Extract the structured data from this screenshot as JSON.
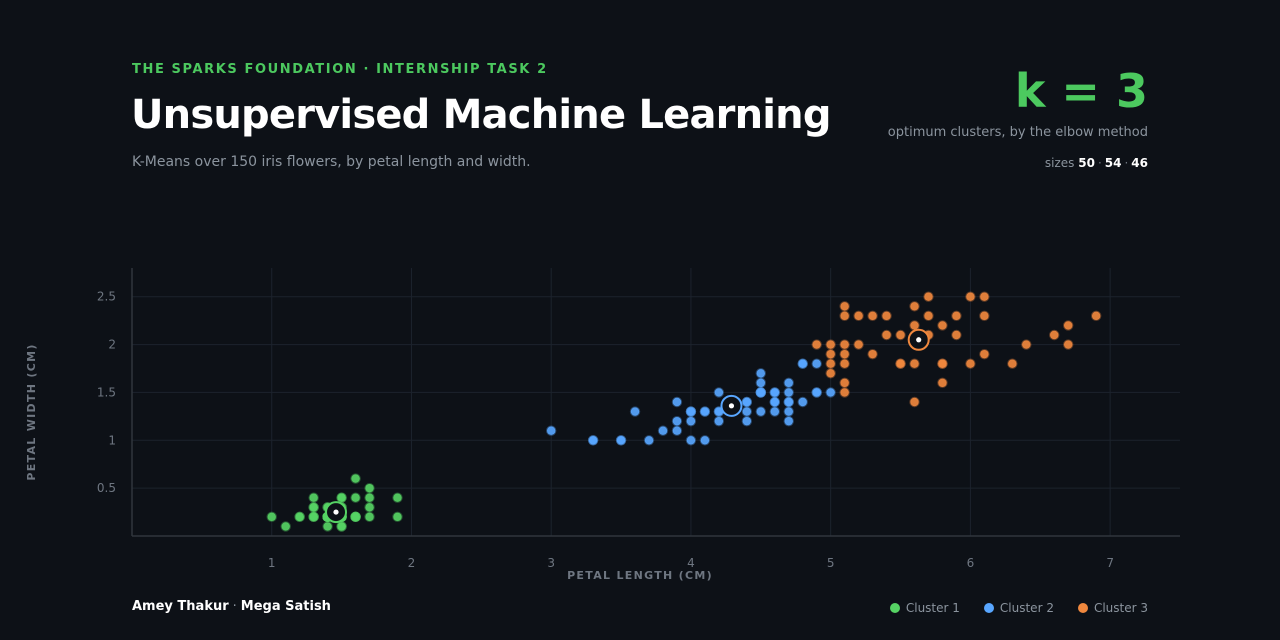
{
  "header": {
    "eyebrow": "THE SPARKS FOUNDATION · INTERNSHIP TASK 2",
    "title": "Unsupervised Machine Learning",
    "subtitle": "K-Means over 150 iris flowers, by petal length and width."
  },
  "summary": {
    "k_label": "k = 3",
    "k_note": "optimum clusters, by the elbow method",
    "sizes_label": "sizes",
    "sizes": [
      "50",
      "54",
      "46"
    ]
  },
  "footer": {
    "author_1": "Amey Thakur",
    "author_sep": "·",
    "author_2": "Mega Satish"
  },
  "chart_data": {
    "type": "scatter",
    "title": "",
    "xlabel": "PETAL LENGTH (CM)",
    "ylabel": "PETAL WIDTH (CM)",
    "xlim": [
      0,
      7.5
    ],
    "ylim": [
      0,
      2.8
    ],
    "xticks": [
      "1",
      "2",
      "3",
      "4",
      "5",
      "6",
      "7"
    ],
    "yticks": [
      "0.5",
      "1",
      "1.5",
      "2",
      "2.5"
    ],
    "grid": true,
    "legend_position": "bottom-right",
    "series": [
      {
        "name": "Cluster 1",
        "color": "#56d364",
        "centroid": [
          1.46,
          0.25
        ],
        "points": [
          [
            1.0,
            0.2
          ],
          [
            1.1,
            0.1
          ],
          [
            1.2,
            0.2
          ],
          [
            1.2,
            0.2
          ],
          [
            1.3,
            0.2
          ],
          [
            1.3,
            0.3
          ],
          [
            1.3,
            0.4
          ],
          [
            1.3,
            0.2
          ],
          [
            1.3,
            0.3
          ],
          [
            1.3,
            0.2
          ],
          [
            1.4,
            0.2
          ],
          [
            1.4,
            0.1
          ],
          [
            1.4,
            0.3
          ],
          [
            1.4,
            0.2
          ],
          [
            1.4,
            0.2
          ],
          [
            1.4,
            0.2
          ],
          [
            1.4,
            0.3
          ],
          [
            1.4,
            0.2
          ],
          [
            1.4,
            0.2
          ],
          [
            1.4,
            0.2
          ],
          [
            1.4,
            0.2
          ],
          [
            1.4,
            0.2
          ],
          [
            1.5,
            0.2
          ],
          [
            1.5,
            0.4
          ],
          [
            1.5,
            0.1
          ],
          [
            1.5,
            0.2
          ],
          [
            1.5,
            0.3
          ],
          [
            1.5,
            0.4
          ],
          [
            1.5,
            0.2
          ],
          [
            1.5,
            0.1
          ],
          [
            1.5,
            0.2
          ],
          [
            1.5,
            0.2
          ],
          [
            1.5,
            0.3
          ],
          [
            1.5,
            0.2
          ],
          [
            1.5,
            0.2
          ],
          [
            1.6,
            0.2
          ],
          [
            1.6,
            0.4
          ],
          [
            1.6,
            0.2
          ],
          [
            1.6,
            0.6
          ],
          [
            1.6,
            0.2
          ],
          [
            1.6,
            0.2
          ],
          [
            1.6,
            0.2
          ],
          [
            1.7,
            0.4
          ],
          [
            1.7,
            0.3
          ],
          [
            1.7,
            0.5
          ],
          [
            1.7,
            0.2
          ],
          [
            1.9,
            0.2
          ],
          [
            1.9,
            0.4
          ],
          [
            1.5,
            0.2
          ],
          [
            1.4,
            0.2
          ]
        ]
      },
      {
        "name": "Cluster 2",
        "color": "#58a6ff",
        "centroid": [
          4.29,
          1.36
        ],
        "points": [
          [
            3.0,
            1.1
          ],
          [
            3.3,
            1.0
          ],
          [
            3.3,
            1.0
          ],
          [
            3.5,
            1.0
          ],
          [
            3.5,
            1.0
          ],
          [
            3.6,
            1.3
          ],
          [
            3.7,
            1.0
          ],
          [
            3.8,
            1.1
          ],
          [
            3.9,
            1.4
          ],
          [
            3.9,
            1.1
          ],
          [
            3.9,
            1.2
          ],
          [
            4.0,
            1.3
          ],
          [
            4.0,
            1.0
          ],
          [
            4.0,
            1.3
          ],
          [
            4.0,
            1.2
          ],
          [
            4.0,
            1.3
          ],
          [
            4.1,
            1.3
          ],
          [
            4.1,
            1.0
          ],
          [
            4.1,
            1.3
          ],
          [
            4.2,
            1.3
          ],
          [
            4.2,
            1.2
          ],
          [
            4.2,
            1.3
          ],
          [
            4.2,
            1.5
          ],
          [
            4.3,
            1.3
          ],
          [
            4.3,
            1.3
          ],
          [
            4.4,
            1.4
          ],
          [
            4.4,
            1.3
          ],
          [
            4.4,
            1.2
          ],
          [
            4.4,
            1.4
          ],
          [
            4.5,
            1.5
          ],
          [
            4.5,
            1.5
          ],
          [
            4.5,
            1.3
          ],
          [
            4.5,
            1.5
          ],
          [
            4.5,
            1.6
          ],
          [
            4.5,
            1.7
          ],
          [
            4.5,
            1.5
          ],
          [
            4.6,
            1.5
          ],
          [
            4.6,
            1.4
          ],
          [
            4.6,
            1.3
          ],
          [
            4.6,
            1.4
          ],
          [
            4.7,
            1.4
          ],
          [
            4.7,
            1.6
          ],
          [
            4.7,
            1.4
          ],
          [
            4.7,
            1.5
          ],
          [
            4.7,
            1.2
          ],
          [
            4.8,
            1.8
          ],
          [
            4.8,
            1.4
          ],
          [
            4.8,
            1.8
          ],
          [
            4.9,
            1.5
          ],
          [
            4.9,
            1.5
          ],
          [
            4.9,
            1.8
          ],
          [
            5.0,
            1.5
          ],
          [
            4.7,
            1.3
          ],
          [
            4.6,
            1.5
          ]
        ]
      },
      {
        "name": "Cluster 3",
        "color": "#f0883e",
        "centroid": [
          5.63,
          2.05
        ],
        "points": [
          [
            4.9,
            2.0
          ],
          [
            5.0,
            2.0
          ],
          [
            5.0,
            1.7
          ],
          [
            5.0,
            1.9
          ],
          [
            5.1,
            2.4
          ],
          [
            5.1,
            2.3
          ],
          [
            5.1,
            2.0
          ],
          [
            5.1,
            1.9
          ],
          [
            5.1,
            1.6
          ],
          [
            5.1,
            1.5
          ],
          [
            5.1,
            1.8
          ],
          [
            5.2,
            2.3
          ],
          [
            5.2,
            2.0
          ],
          [
            5.3,
            2.3
          ],
          [
            5.3,
            1.9
          ],
          [
            5.4,
            2.3
          ],
          [
            5.4,
            2.1
          ],
          [
            5.5,
            2.1
          ],
          [
            5.5,
            1.8
          ],
          [
            5.5,
            1.8
          ],
          [
            5.6,
            2.4
          ],
          [
            5.6,
            2.2
          ],
          [
            5.6,
            2.1
          ],
          [
            5.6,
            1.8
          ],
          [
            5.6,
            1.4
          ],
          [
            5.7,
            2.5
          ],
          [
            5.7,
            2.3
          ],
          [
            5.7,
            2.1
          ],
          [
            5.8,
            2.2
          ],
          [
            5.8,
            1.8
          ],
          [
            5.8,
            1.6
          ],
          [
            5.9,
            2.3
          ],
          [
            5.9,
            2.1
          ],
          [
            6.0,
            2.5
          ],
          [
            6.0,
            1.8
          ],
          [
            6.1,
            2.5
          ],
          [
            6.1,
            2.3
          ],
          [
            6.1,
            1.9
          ],
          [
            6.3,
            1.8
          ],
          [
            6.4,
            2.0
          ],
          [
            6.6,
            2.1
          ],
          [
            6.7,
            2.2
          ],
          [
            6.7,
            2.0
          ],
          [
            6.9,
            2.3
          ],
          [
            5.0,
            1.8
          ],
          [
            5.8,
            1.8
          ]
        ]
      }
    ]
  }
}
